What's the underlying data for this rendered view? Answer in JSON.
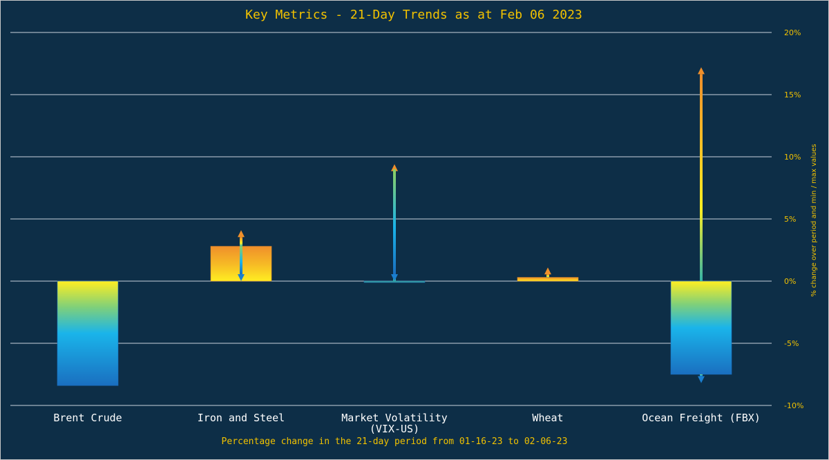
{
  "chart_data": {
    "type": "bar",
    "title": "Key Metrics - 21-Day Trends as at Feb 06 2023",
    "xlabel": "Percentage change in the 21-day period from 01-16-23 to 02-06-23",
    "ylabel": "% change over period and min / max values",
    "ylim": [
      -10,
      20
    ],
    "yticks": [
      -10,
      -5,
      0,
      5,
      10,
      15,
      20
    ],
    "ytick_labels": [
      "-10%",
      "-5%",
      "0%",
      "5%",
      "10%",
      "15%",
      "20%"
    ],
    "grid": true,
    "y_axis_side": "right",
    "categories": [
      [
        "Brent Crude"
      ],
      [
        "Iron and Steel"
      ],
      [
        "Market Volatility",
        "(VIX-US)"
      ],
      [
        "Wheat"
      ],
      [
        "Ocean Freight (FBX)"
      ]
    ],
    "series": [
      {
        "values": [
          -8.4,
          2.8,
          -0.1,
          0.3,
          -7.5
        ]
      }
    ],
    "range_min": [
      -8.4,
      0.0,
      0.0,
      0.3,
      -8.2
    ],
    "range_max": [
      0.0,
      4.1,
      9.4,
      1.1,
      17.2
    ]
  }
}
